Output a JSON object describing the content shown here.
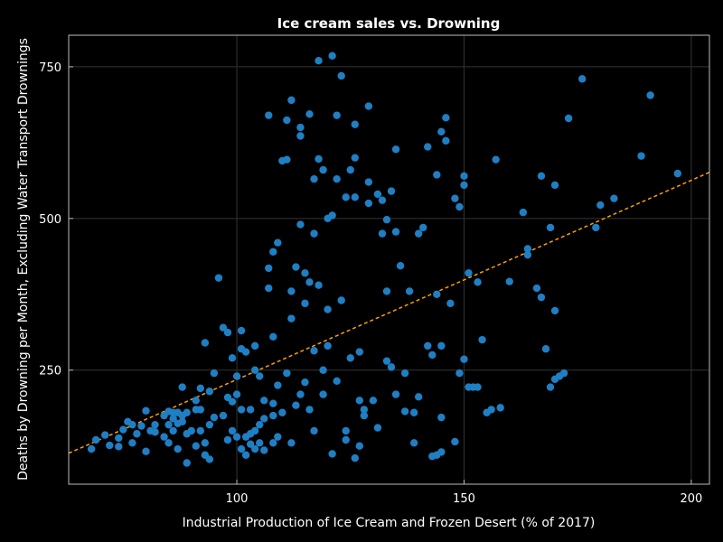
{
  "chart_data": {
    "type": "scatter",
    "title": "Ice cream sales vs. Drowning",
    "xlabel": "Industrial Production of Ice Cream and Frozen Desert (% of 2017)",
    "ylabel": "Deaths by Drowning per Month, Excluding Water Transport Drownings",
    "xlim": [
      63,
      204
    ],
    "ylim": [
      62,
      802
    ],
    "xticks": [
      100,
      150,
      200
    ],
    "yticks": [
      250,
      500,
      750
    ],
    "grid": true,
    "colors": {
      "points": "#1f7fc4",
      "trend": "#ff9f00",
      "frame": "#bbbbbb",
      "grid": "#333333"
    },
    "trend_line": {
      "x": [
        63,
        204
      ],
      "y": [
        113,
        576
      ]
    },
    "points": [
      {
        "x": 68,
        "y": 120
      },
      {
        "x": 69,
        "y": 135
      },
      {
        "x": 71,
        "y": 143
      },
      {
        "x": 72,
        "y": 126
      },
      {
        "x": 74,
        "y": 124
      },
      {
        "x": 74,
        "y": 138
      },
      {
        "x": 75,
        "y": 152
      },
      {
        "x": 76,
        "y": 165
      },
      {
        "x": 77,
        "y": 130
      },
      {
        "x": 77,
        "y": 160
      },
      {
        "x": 78,
        "y": 145
      },
      {
        "x": 79,
        "y": 158
      },
      {
        "x": 80,
        "y": 116
      },
      {
        "x": 80,
        "y": 183
      },
      {
        "x": 81,
        "y": 150
      },
      {
        "x": 82,
        "y": 148
      },
      {
        "x": 82,
        "y": 160
      },
      {
        "x": 84,
        "y": 140
      },
      {
        "x": 84,
        "y": 175
      },
      {
        "x": 85,
        "y": 130
      },
      {
        "x": 85,
        "y": 160
      },
      {
        "x": 85,
        "y": 182
      },
      {
        "x": 86,
        "y": 150
      },
      {
        "x": 86,
        "y": 170
      },
      {
        "x": 86,
        "y": 180
      },
      {
        "x": 87,
        "y": 120
      },
      {
        "x": 87,
        "y": 162
      },
      {
        "x": 87,
        "y": 180
      },
      {
        "x": 88,
        "y": 222
      },
      {
        "x": 88,
        "y": 165
      },
      {
        "x": 88,
        "y": 175
      },
      {
        "x": 89,
        "y": 97
      },
      {
        "x": 89,
        "y": 145
      },
      {
        "x": 89,
        "y": 180
      },
      {
        "x": 90,
        "y": 150
      },
      {
        "x": 91,
        "y": 125
      },
      {
        "x": 91,
        "y": 185
      },
      {
        "x": 91,
        "y": 200
      },
      {
        "x": 92,
        "y": 150
      },
      {
        "x": 92,
        "y": 220
      },
      {
        "x": 92,
        "y": 185
      },
      {
        "x": 93,
        "y": 110
      },
      {
        "x": 93,
        "y": 130
      },
      {
        "x": 93,
        "y": 295
      },
      {
        "x": 94,
        "y": 103
      },
      {
        "x": 94,
        "y": 160
      },
      {
        "x": 94,
        "y": 215
      },
      {
        "x": 95,
        "y": 172
      },
      {
        "x": 95,
        "y": 245
      },
      {
        "x": 96,
        "y": 402
      },
      {
        "x": 97,
        "y": 320
      },
      {
        "x": 97,
        "y": 175
      },
      {
        "x": 98,
        "y": 135
      },
      {
        "x": 98,
        "y": 205
      },
      {
        "x": 98,
        "y": 312
      },
      {
        "x": 99,
        "y": 150
      },
      {
        "x": 99,
        "y": 198
      },
      {
        "x": 99,
        "y": 270
      },
      {
        "x": 100,
        "y": 140
      },
      {
        "x": 100,
        "y": 240
      },
      {
        "x": 100,
        "y": 210
      },
      {
        "x": 101,
        "y": 120
      },
      {
        "x": 101,
        "y": 185
      },
      {
        "x": 101,
        "y": 285
      },
      {
        "x": 101,
        "y": 315
      },
      {
        "x": 102,
        "y": 110
      },
      {
        "x": 102,
        "y": 140
      },
      {
        "x": 102,
        "y": 280
      },
      {
        "x": 103,
        "y": 128
      },
      {
        "x": 103,
        "y": 145
      },
      {
        "x": 103,
        "y": 185
      },
      {
        "x": 104,
        "y": 150
      },
      {
        "x": 104,
        "y": 120
      },
      {
        "x": 104,
        "y": 250
      },
      {
        "x": 104,
        "y": 290
      },
      {
        "x": 105,
        "y": 130
      },
      {
        "x": 105,
        "y": 160
      },
      {
        "x": 105,
        "y": 240
      },
      {
        "x": 106,
        "y": 118
      },
      {
        "x": 106,
        "y": 170
      },
      {
        "x": 106,
        "y": 200
      },
      {
        "x": 107,
        "y": 385
      },
      {
        "x": 107,
        "y": 418
      },
      {
        "x": 107,
        "y": 670
      },
      {
        "x": 108,
        "y": 130
      },
      {
        "x": 108,
        "y": 175
      },
      {
        "x": 108,
        "y": 195
      },
      {
        "x": 108,
        "y": 305
      },
      {
        "x": 108,
        "y": 445
      },
      {
        "x": 109,
        "y": 460
      },
      {
        "x": 109,
        "y": 140
      },
      {
        "x": 109,
        "y": 225
      },
      {
        "x": 110,
        "y": 180
      },
      {
        "x": 110,
        "y": 595
      },
      {
        "x": 111,
        "y": 597
      },
      {
        "x": 111,
        "y": 662
      },
      {
        "x": 111,
        "y": 245
      },
      {
        "x": 112,
        "y": 130
      },
      {
        "x": 112,
        "y": 335
      },
      {
        "x": 112,
        "y": 380
      },
      {
        "x": 112,
        "y": 695
      },
      {
        "x": 113,
        "y": 192
      },
      {
        "x": 113,
        "y": 420
      },
      {
        "x": 114,
        "y": 490
      },
      {
        "x": 114,
        "y": 650
      },
      {
        "x": 114,
        "y": 636
      },
      {
        "x": 114,
        "y": 210
      },
      {
        "x": 115,
        "y": 230
      },
      {
        "x": 115,
        "y": 360
      },
      {
        "x": 115,
        "y": 410
      },
      {
        "x": 116,
        "y": 185
      },
      {
        "x": 116,
        "y": 395
      },
      {
        "x": 116,
        "y": 672
      },
      {
        "x": 117,
        "y": 150
      },
      {
        "x": 117,
        "y": 565
      },
      {
        "x": 117,
        "y": 475
      },
      {
        "x": 117,
        "y": 282
      },
      {
        "x": 118,
        "y": 760
      },
      {
        "x": 118,
        "y": 598
      },
      {
        "x": 118,
        "y": 390
      },
      {
        "x": 119,
        "y": 580
      },
      {
        "x": 119,
        "y": 210
      },
      {
        "x": 119,
        "y": 250
      },
      {
        "x": 120,
        "y": 290
      },
      {
        "x": 120,
        "y": 350
      },
      {
        "x": 120,
        "y": 500
      },
      {
        "x": 121,
        "y": 768
      },
      {
        "x": 121,
        "y": 505
      },
      {
        "x": 121,
        "y": 112
      },
      {
        "x": 122,
        "y": 565
      },
      {
        "x": 122,
        "y": 670
      },
      {
        "x": 122,
        "y": 232
      },
      {
        "x": 123,
        "y": 735
      },
      {
        "x": 123,
        "y": 365
      },
      {
        "x": 124,
        "y": 150
      },
      {
        "x": 124,
        "y": 535
      },
      {
        "x": 124,
        "y": 135
      },
      {
        "x": 125,
        "y": 580
      },
      {
        "x": 125,
        "y": 270
      },
      {
        "x": 126,
        "y": 600
      },
      {
        "x": 126,
        "y": 655
      },
      {
        "x": 126,
        "y": 535
      },
      {
        "x": 126,
        "y": 105
      },
      {
        "x": 127,
        "y": 125
      },
      {
        "x": 127,
        "y": 280
      },
      {
        "x": 127,
        "y": 200
      },
      {
        "x": 128,
        "y": 185
      },
      {
        "x": 128,
        "y": 175
      },
      {
        "x": 129,
        "y": 560
      },
      {
        "x": 129,
        "y": 525
      },
      {
        "x": 129,
        "y": 685
      },
      {
        "x": 130,
        "y": 200
      },
      {
        "x": 131,
        "y": 155
      },
      {
        "x": 131,
        "y": 540
      },
      {
        "x": 132,
        "y": 530
      },
      {
        "x": 132,
        "y": 475
      },
      {
        "x": 133,
        "y": 380
      },
      {
        "x": 133,
        "y": 498
      },
      {
        "x": 133,
        "y": 265
      },
      {
        "x": 134,
        "y": 545
      },
      {
        "x": 134,
        "y": 255
      },
      {
        "x": 135,
        "y": 614
      },
      {
        "x": 135,
        "y": 478
      },
      {
        "x": 135,
        "y": 210
      },
      {
        "x": 136,
        "y": 422
      },
      {
        "x": 137,
        "y": 245
      },
      {
        "x": 137,
        "y": 182
      },
      {
        "x": 138,
        "y": 380
      },
      {
        "x": 139,
        "y": 130
      },
      {
        "x": 139,
        "y": 180
      },
      {
        "x": 140,
        "y": 475
      },
      {
        "x": 140,
        "y": 206
      },
      {
        "x": 141,
        "y": 485
      },
      {
        "x": 142,
        "y": 290
      },
      {
        "x": 142,
        "y": 618
      },
      {
        "x": 143,
        "y": 108
      },
      {
        "x": 143,
        "y": 275
      },
      {
        "x": 144,
        "y": 110
      },
      {
        "x": 144,
        "y": 375
      },
      {
        "x": 144,
        "y": 572
      },
      {
        "x": 145,
        "y": 115
      },
      {
        "x": 145,
        "y": 290
      },
      {
        "x": 145,
        "y": 172
      },
      {
        "x": 145,
        "y": 643
      },
      {
        "x": 146,
        "y": 666
      },
      {
        "x": 146,
        "y": 628
      },
      {
        "x": 147,
        "y": 360
      },
      {
        "x": 148,
        "y": 132
      },
      {
        "x": 148,
        "y": 533
      },
      {
        "x": 149,
        "y": 245
      },
      {
        "x": 149,
        "y": 519
      },
      {
        "x": 150,
        "y": 570
      },
      {
        "x": 150,
        "y": 555
      },
      {
        "x": 150,
        "y": 268
      },
      {
        "x": 151,
        "y": 410
      },
      {
        "x": 151,
        "y": 222
      },
      {
        "x": 152,
        "y": 222
      },
      {
        "x": 153,
        "y": 395
      },
      {
        "x": 153,
        "y": 222
      },
      {
        "x": 154,
        "y": 300
      },
      {
        "x": 155,
        "y": 180
      },
      {
        "x": 156,
        "y": 185
      },
      {
        "x": 157,
        "y": 597
      },
      {
        "x": 158,
        "y": 188
      },
      {
        "x": 160,
        "y": 396
      },
      {
        "x": 163,
        "y": 510
      },
      {
        "x": 164,
        "y": 450
      },
      {
        "x": 164,
        "y": 440
      },
      {
        "x": 166,
        "y": 385
      },
      {
        "x": 167,
        "y": 570
      },
      {
        "x": 167,
        "y": 370
      },
      {
        "x": 168,
        "y": 285
      },
      {
        "x": 169,
        "y": 485
      },
      {
        "x": 169,
        "y": 222
      },
      {
        "x": 170,
        "y": 555
      },
      {
        "x": 170,
        "y": 235
      },
      {
        "x": 170,
        "y": 348
      },
      {
        "x": 171,
        "y": 240
      },
      {
        "x": 172,
        "y": 245
      },
      {
        "x": 173,
        "y": 665
      },
      {
        "x": 176,
        "y": 730
      },
      {
        "x": 179,
        "y": 485
      },
      {
        "x": 180,
        "y": 522
      },
      {
        "x": 183,
        "y": 533
      },
      {
        "x": 189,
        "y": 603
      },
      {
        "x": 191,
        "y": 703
      },
      {
        "x": 197,
        "y": 574
      }
    ]
  }
}
